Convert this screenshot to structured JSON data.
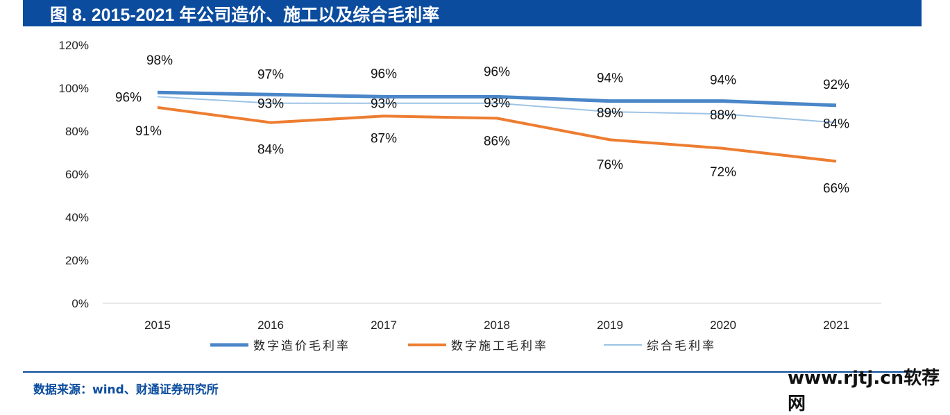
{
  "title": "图 8. 2015-2021 年公司造价、施工以及综合毛利率",
  "source": "数据来源：wind、财通证券研究所",
  "watermark": "www.rjtj.cn软荐网",
  "chart_data": {
    "type": "line",
    "title": "",
    "categories": [
      "2015",
      "2016",
      "2017",
      "2018",
      "2019",
      "2020",
      "2021"
    ],
    "yticks": [
      "0%",
      "20%",
      "40%",
      "60%",
      "80%",
      "100%",
      "120%"
    ],
    "ylim": [
      0,
      120
    ],
    "grid": false,
    "legend": "bottom",
    "series": [
      {
        "name": "数字造价毛利率",
        "color": "#4a86c8",
        "values": [
          98,
          97,
          96,
          96,
          94,
          94,
          92
        ]
      },
      {
        "name": "数字施工毛利率",
        "color": "#ed7d31",
        "values": [
          91,
          84,
          87,
          86,
          76,
          72,
          66
        ]
      },
      {
        "name": "综合毛利率",
        "color": "#9dc3e6",
        "values": [
          96,
          93,
          93,
          93,
          89,
          88,
          84
        ]
      }
    ]
  }
}
